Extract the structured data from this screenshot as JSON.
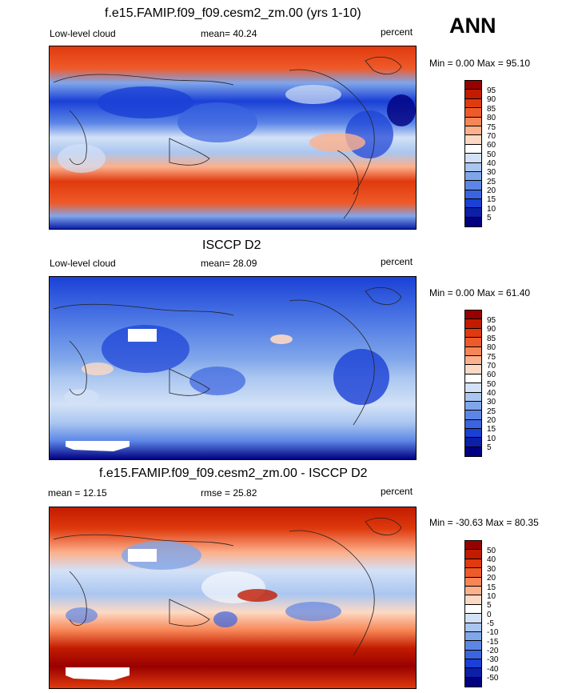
{
  "season": "ANN",
  "panels": [
    {
      "title": "f.e15.FAMIP.f09_f09.cesm2_zm.00 (yrs 1-10)",
      "left_label": "Low-level cloud",
      "center_label": "mean=  40.24",
      "right_label": "percent",
      "minmax": "Min =   0.00 Max =   95.10",
      "levels": [
        "95",
        "90",
        "85",
        "80",
        "75",
        "70",
        "60",
        "50",
        "40",
        "30",
        "25",
        "20",
        "15",
        "10",
        "5"
      ],
      "colors": [
        "#990000",
        "#c21b00",
        "#e03a0e",
        "#ef5a2a",
        "#f78656",
        "#fcb08c",
        "#fdd9c4",
        "#ffffff",
        "#d3e1f7",
        "#aac6f0",
        "#80a6ea",
        "#5c86e6",
        "#3a64e0",
        "#1a40d6",
        "#0b1fa8",
        "#000080"
      ]
    },
    {
      "title": "ISCCP D2",
      "left_label": "Low-level cloud",
      "center_label": "mean=  28.09",
      "right_label": "percent",
      "minmax": "Min =   0.00 Max =   61.40",
      "levels": [
        "95",
        "90",
        "85",
        "80",
        "75",
        "70",
        "60",
        "50",
        "40",
        "30",
        "25",
        "20",
        "15",
        "10",
        "5"
      ],
      "colors": [
        "#990000",
        "#c21b00",
        "#e03a0e",
        "#ef5a2a",
        "#f78656",
        "#fcb08c",
        "#fdd9c4",
        "#ffffff",
        "#d3e1f7",
        "#aac6f0",
        "#80a6ea",
        "#5c86e6",
        "#3a64e0",
        "#1a40d6",
        "#0b1fa8",
        "#000080"
      ]
    },
    {
      "title": "f.e15.FAMIP.f09_f09.cesm2_zm.00 - ISCCP D2",
      "left_label": "mean =  12.15",
      "center_label": "rmse =  25.82",
      "right_label": "percent",
      "minmax": "Min = -30.63 Max =  80.35",
      "levels": [
        "50",
        "40",
        "30",
        "20",
        "15",
        "10",
        "5",
        "0",
        "-5",
        "-10",
        "-15",
        "-20",
        "-30",
        "-40",
        "-50"
      ],
      "colors": [
        "#990000",
        "#c21b00",
        "#e03a0e",
        "#ef5a2a",
        "#f78656",
        "#fcb08c",
        "#fdd9c4",
        "#ffffff",
        "#d3e1f7",
        "#aac6f0",
        "#80a6ea",
        "#5c86e6",
        "#3a64e0",
        "#1a40d6",
        "#0b1fa8",
        "#000080"
      ]
    }
  ]
}
